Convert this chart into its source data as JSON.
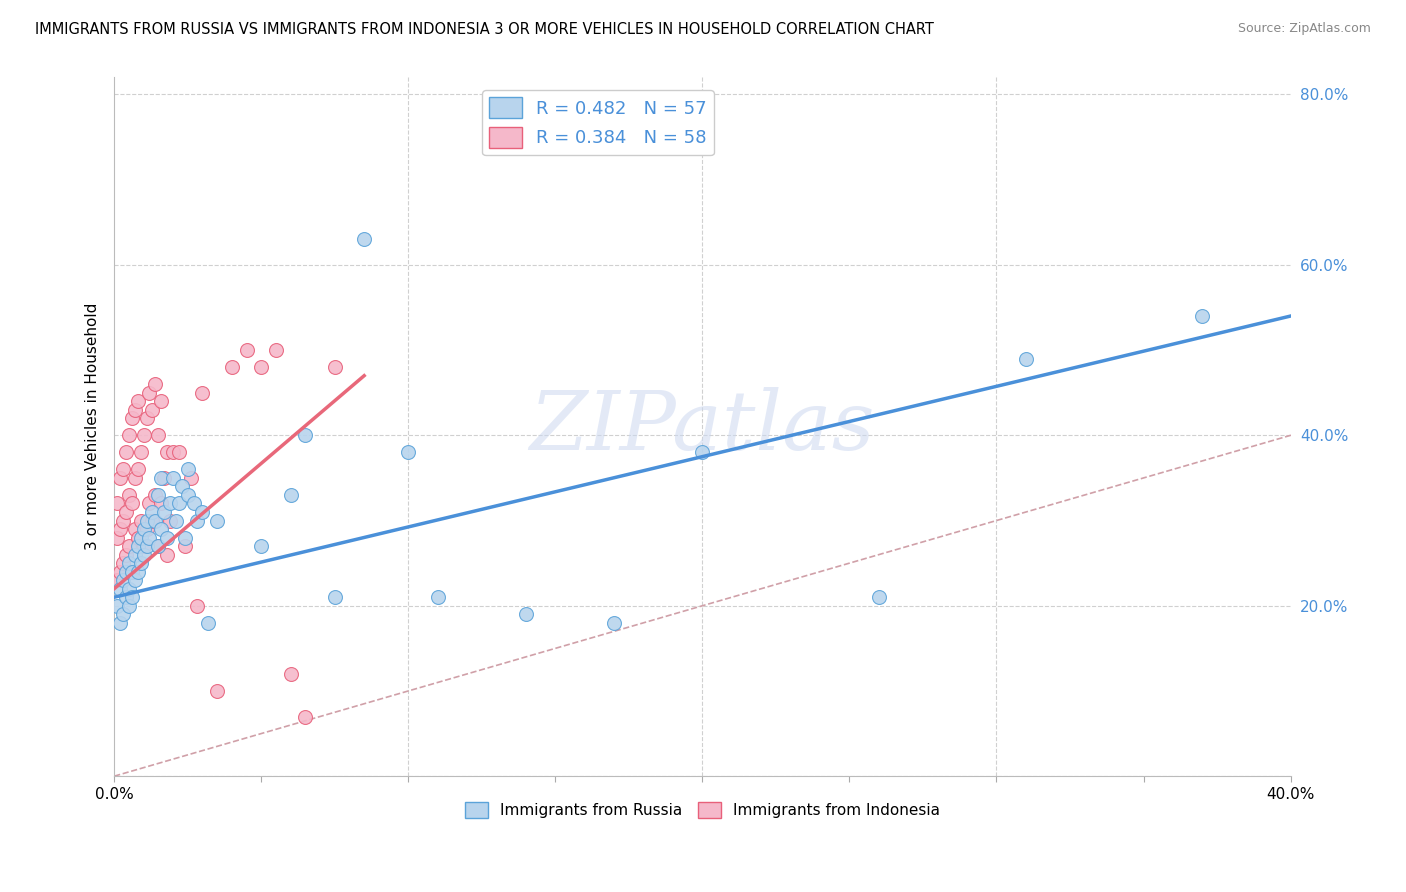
{
  "title": "IMMIGRANTS FROM RUSSIA VS IMMIGRANTS FROM INDONESIA 3 OR MORE VEHICLES IN HOUSEHOLD CORRELATION CHART",
  "source": "Source: ZipAtlas.com",
  "ylabel": "3 or more Vehicles in Household",
  "xlim": [
    0.0,
    0.4
  ],
  "ylim": [
    0.0,
    0.82
  ],
  "xticks": [
    0.0,
    0.05,
    0.1,
    0.15,
    0.2,
    0.25,
    0.3,
    0.35,
    0.4
  ],
  "xticklabels": [
    "0.0%",
    "",
    "",
    "",
    "",
    "",
    "",
    "",
    "40.0%"
  ],
  "yticks": [
    0.0,
    0.2,
    0.4,
    0.6,
    0.8
  ],
  "yticklabels": [
    "",
    "20.0%",
    "40.0%",
    "60.0%",
    "80.0%"
  ],
  "legend_R1": "R = 0.482",
  "legend_N1": "N = 57",
  "legend_R2": "R = 0.384",
  "legend_N2": "N = 58",
  "color_russia_fill": "#b8d4ed",
  "color_russia_edge": "#5ba3d9",
  "color_indonesia_fill": "#f5b8ca",
  "color_indonesia_edge": "#e8607a",
  "color_russia_line": "#4a90d9",
  "color_indonesia_line": "#e8687a",
  "color_ytick_label": "#4a90d9",
  "color_diag": "#d0a0a8",
  "watermark_text": "ZIPatlas",
  "watermark_color": "#ccd8f0",
  "russia_trend_x0": 0.0,
  "russia_trend_y0": 0.21,
  "russia_trend_x1": 0.4,
  "russia_trend_y1": 0.54,
  "indonesia_trend_x0": 0.0,
  "indonesia_trend_y0": 0.22,
  "indonesia_trend_x1": 0.085,
  "indonesia_trend_y1": 0.47,
  "russia_x": [
    0.001,
    0.002,
    0.002,
    0.003,
    0.003,
    0.004,
    0.004,
    0.005,
    0.005,
    0.005,
    0.006,
    0.006,
    0.007,
    0.007,
    0.008,
    0.008,
    0.009,
    0.009,
    0.01,
    0.01,
    0.011,
    0.011,
    0.012,
    0.013,
    0.014,
    0.015,
    0.015,
    0.016,
    0.016,
    0.017,
    0.018,
    0.019,
    0.02,
    0.021,
    0.022,
    0.023,
    0.024,
    0.025,
    0.025,
    0.027,
    0.028,
    0.03,
    0.032,
    0.035,
    0.05,
    0.06,
    0.065,
    0.075,
    0.085,
    0.1,
    0.11,
    0.14,
    0.17,
    0.2,
    0.26,
    0.31,
    0.37
  ],
  "russia_y": [
    0.2,
    0.18,
    0.22,
    0.19,
    0.23,
    0.21,
    0.24,
    0.2,
    0.22,
    0.25,
    0.21,
    0.24,
    0.26,
    0.23,
    0.27,
    0.24,
    0.28,
    0.25,
    0.29,
    0.26,
    0.3,
    0.27,
    0.28,
    0.31,
    0.3,
    0.27,
    0.33,
    0.29,
    0.35,
    0.31,
    0.28,
    0.32,
    0.35,
    0.3,
    0.32,
    0.34,
    0.28,
    0.33,
    0.36,
    0.32,
    0.3,
    0.31,
    0.18,
    0.3,
    0.27,
    0.33,
    0.4,
    0.21,
    0.63,
    0.38,
    0.21,
    0.19,
    0.18,
    0.38,
    0.21,
    0.49,
    0.54
  ],
  "indonesia_x": [
    0.001,
    0.001,
    0.001,
    0.002,
    0.002,
    0.002,
    0.003,
    0.003,
    0.003,
    0.004,
    0.004,
    0.004,
    0.005,
    0.005,
    0.005,
    0.006,
    0.006,
    0.006,
    0.007,
    0.007,
    0.007,
    0.008,
    0.008,
    0.008,
    0.009,
    0.009,
    0.01,
    0.01,
    0.011,
    0.011,
    0.012,
    0.012,
    0.013,
    0.013,
    0.014,
    0.014,
    0.015,
    0.015,
    0.016,
    0.016,
    0.017,
    0.018,
    0.018,
    0.019,
    0.02,
    0.022,
    0.024,
    0.026,
    0.028,
    0.03,
    0.035,
    0.04,
    0.045,
    0.05,
    0.055,
    0.06,
    0.065,
    0.075
  ],
  "indonesia_y": [
    0.23,
    0.28,
    0.32,
    0.24,
    0.29,
    0.35,
    0.25,
    0.3,
    0.36,
    0.26,
    0.31,
    0.38,
    0.27,
    0.33,
    0.4,
    0.24,
    0.32,
    0.42,
    0.29,
    0.35,
    0.43,
    0.28,
    0.36,
    0.44,
    0.3,
    0.38,
    0.27,
    0.4,
    0.29,
    0.42,
    0.32,
    0.45,
    0.3,
    0.43,
    0.33,
    0.46,
    0.27,
    0.4,
    0.32,
    0.44,
    0.35,
    0.26,
    0.38,
    0.3,
    0.38,
    0.38,
    0.27,
    0.35,
    0.2,
    0.45,
    0.1,
    0.48,
    0.5,
    0.48,
    0.5,
    0.12,
    0.07,
    0.48
  ]
}
